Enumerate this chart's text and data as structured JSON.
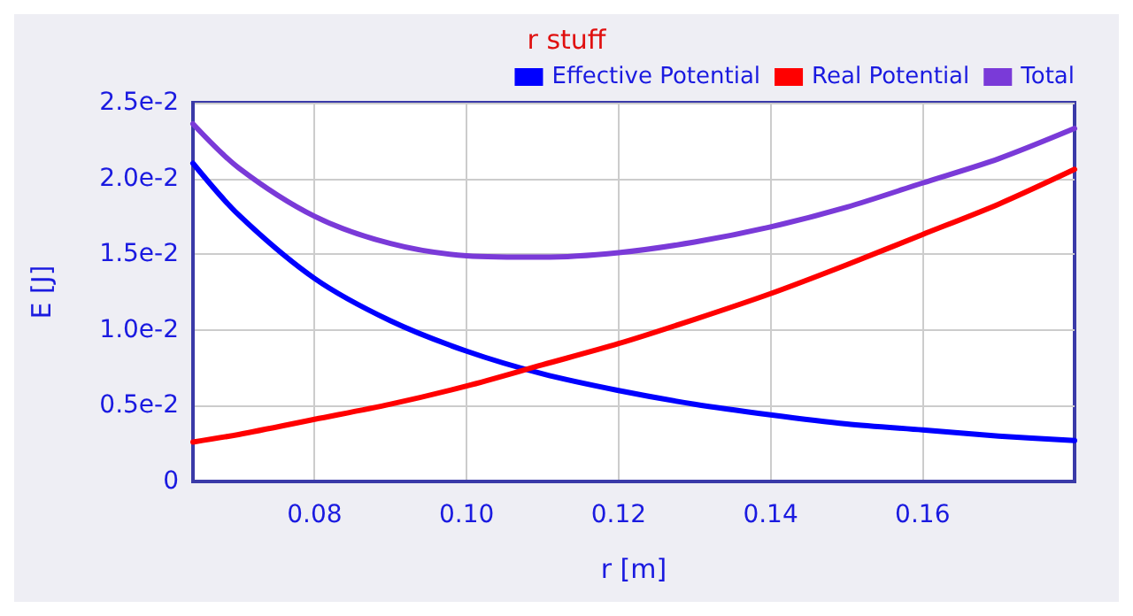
{
  "chart_data": {
    "type": "line",
    "title": "r stuff",
    "xlabel": "r [m]",
    "ylabel": "E [J]",
    "x": [
      0.064,
      0.07,
      0.08,
      0.09,
      0.1,
      0.11,
      0.12,
      0.13,
      0.14,
      0.15,
      0.16,
      0.17,
      0.18
    ],
    "series": [
      {
        "name": "Effective Potential",
        "color": "#0000ff",
        "values": [
          0.021,
          0.0176,
          0.0134,
          0.0106,
          0.0086,
          0.0071,
          0.006,
          0.0051,
          0.0044,
          0.0038,
          0.0034,
          0.003,
          0.0027
        ]
      },
      {
        "name": "Real Potential",
        "color": "#ff0000",
        "values": [
          0.0026,
          0.0031,
          0.0041,
          0.0051,
          0.0063,
          0.0077,
          0.0091,
          0.0107,
          0.0124,
          0.0143,
          0.0163,
          0.0183,
          0.0206
        ]
      },
      {
        "name": "Total",
        "color": "#7a3ad8",
        "values": [
          0.0236,
          0.0207,
          0.0175,
          0.0157,
          0.0149,
          0.0148,
          0.0151,
          0.0158,
          0.0168,
          0.0181,
          0.0197,
          0.0213,
          0.0233
        ]
      }
    ],
    "xlim": [
      0.064,
      0.18
    ],
    "xticks": [
      0.08,
      {
        "value": 0.1,
        "label": "0.10"
      },
      0.12,
      0.14,
      0.16
    ],
    "ylim": [
      0,
      0.025
    ],
    "yticks": [
      0,
      {
        "value": 0.005,
        "label": "0.5e-2"
      },
      {
        "value": 0.01,
        "label": "1.0e-2"
      },
      {
        "value": 0.015,
        "label": "1.5e-2"
      },
      {
        "value": 0.02,
        "label": "2.0e-2"
      },
      {
        "value": 0.025,
        "label": "2.5e-2"
      }
    ],
    "grid": true,
    "legend": "top right",
    "marker": "none",
    "line_style": "solid"
  }
}
